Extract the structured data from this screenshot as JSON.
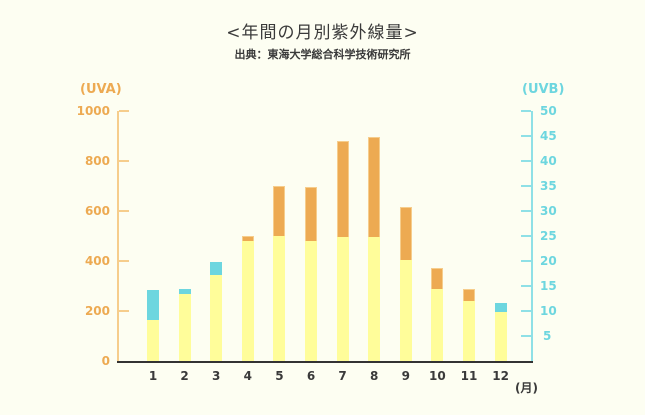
{
  "title": "<年間の月別紫外線量>",
  "subtitle": "出典：東海大学総合科学技術研究所",
  "colors": {
    "background": "#FDFEF2",
    "uva": "#EDAA52",
    "uvb": "#6DD6DF",
    "overlap": "#FFFD9A",
    "uva_axis": "#F6CD8C",
    "uvb_axis": "#8FE0E6",
    "baseline": "#333333"
  },
  "axes": {
    "left_title": "(UVA)",
    "right_title": "(UVB)",
    "x_unit": "(月)",
    "left_ticks": [
      "0",
      "200",
      "400",
      "600",
      "800",
      "1000"
    ],
    "right_ticks": [
      "5",
      "10",
      "15",
      "20",
      "25",
      "30",
      "35",
      "40",
      "45",
      "50"
    ],
    "x_ticks": [
      "1",
      "2",
      "3",
      "4",
      "5",
      "6",
      "7",
      "8",
      "9",
      "10",
      "11",
      "12"
    ]
  },
  "chart_data": {
    "type": "bar",
    "title": "<年間の月別紫外線量>",
    "subtitle": "出典：東海大学総合科学技術研究所",
    "categories": [
      "1",
      "2",
      "3",
      "4",
      "5",
      "6",
      "7",
      "8",
      "9",
      "10",
      "11",
      "12"
    ],
    "xlabel": "(月)",
    "series": [
      {
        "name": "UVA",
        "axis": "left",
        "color": "#EDAA52",
        "values": [
          165,
          268,
          344,
          500,
          700,
          696,
          880,
          896,
          616,
          372,
          288,
          196
        ]
      },
      {
        "name": "UVB",
        "axis": "right",
        "color": "#6DD6DF",
        "values": [
          14.2,
          14.4,
          19.8,
          24,
          25,
          24,
          24.8,
          24.8,
          20.2,
          14.4,
          12,
          11.6
        ]
      }
    ],
    "ylabel_left": "(UVA)",
    "ylim_left": [
      0,
      1000
    ],
    "ylabel_right": "(UVB)",
    "ylim_right": [
      0,
      50
    ],
    "overlap_color": "#FFFD9A",
    "grid": false,
    "legend": "none"
  }
}
